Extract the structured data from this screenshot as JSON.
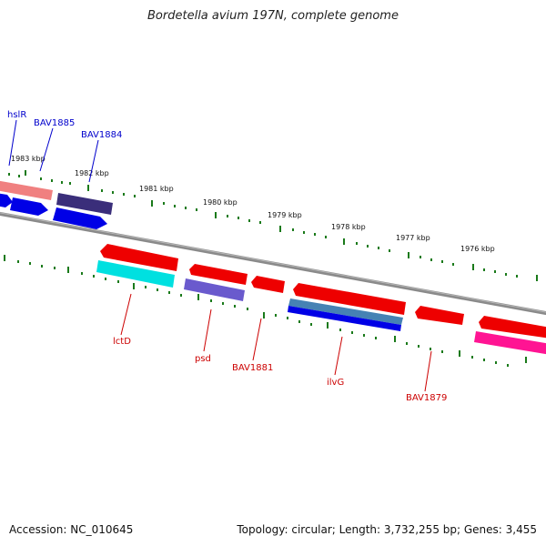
{
  "title": "Bordetella avium 197N, complete genome",
  "footer": {
    "accession": "Accession: NC_010645",
    "stats": "Topology: circular; Length: 3,732,255 bp; Genes: 3,455"
  },
  "scale_labels": [
    "1983 kbp",
    "1982 kbp",
    "1981 kbp",
    "1980 kbp",
    "1979 kbp",
    "1978 kbp",
    "1977 kbp",
    "1976 kbp"
  ],
  "gene_labels": {
    "hslR": "hslR",
    "BAV1885": "BAV1885",
    "BAV1884": "BAV1884",
    "lctD": "lctD",
    "psd": "psd",
    "BAV1881": "BAV1881",
    "ilvG": "ilvG",
    "BAV1879": "BAV1879"
  },
  "colors": {
    "forward_label": "#0000cc",
    "reverse_label": "#cc0000",
    "backbone": "#808080",
    "tick": "#1a7a1a"
  }
}
